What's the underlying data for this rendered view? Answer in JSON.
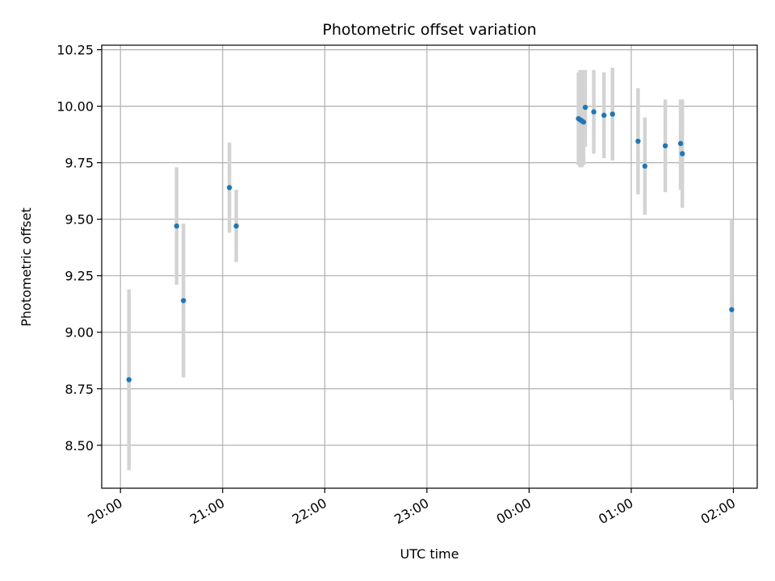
{
  "chart_data": {
    "type": "scatter",
    "title": "Photometric offset variation",
    "xlabel": "UTC time",
    "ylabel": "Photometric offset",
    "x_axis": {
      "type": "time",
      "range": [
        "19:49",
        "02:14"
      ],
      "ticks": [
        {
          "t": "20:00",
          "label": "20:00"
        },
        {
          "t": "21:00",
          "label": "21:00"
        },
        {
          "t": "22:00",
          "label": "22:00"
        },
        {
          "t": "23:00",
          "label": "23:00"
        },
        {
          "t": "00:00",
          "label": "00:00"
        },
        {
          "t": "01:00",
          "label": "01:00"
        },
        {
          "t": "02:00",
          "label": "02:00"
        }
      ]
    },
    "y_axis": {
      "range": [
        8.31,
        10.27
      ],
      "ticks": [
        {
          "v": 8.5,
          "label": "8.50"
        },
        {
          "v": 8.75,
          "label": "8.75"
        },
        {
          "v": 9.0,
          "label": "9.00"
        },
        {
          "v": 9.25,
          "label": "9.25"
        },
        {
          "v": 9.5,
          "label": "9.50"
        },
        {
          "v": 9.75,
          "label": "9.75"
        },
        {
          "v": 10.0,
          "label": "10.00"
        },
        {
          "v": 10.25,
          "label": "10.25"
        }
      ]
    },
    "grid": true,
    "legend": "none",
    "point_color": "#1f77b4",
    "errorbar_color": "#d3d3d3",
    "points": [
      {
        "t": "20:05",
        "y": 8.79,
        "lo": 8.39,
        "hi": 9.19
      },
      {
        "t": "20:33",
        "y": 9.47,
        "lo": 9.21,
        "hi": 9.73
      },
      {
        "t": "20:37",
        "y": 9.14,
        "lo": 8.8,
        "hi": 9.48
      },
      {
        "t": "21:04",
        "y": 9.64,
        "lo": 9.44,
        "hi": 9.84
      },
      {
        "t": "21:08",
        "y": 9.47,
        "lo": 9.31,
        "hi": 9.63
      },
      {
        "t": "00:29",
        "y": 9.945,
        "lo": 9.74,
        "hi": 10.15
      },
      {
        "t": "00:30",
        "y": 9.94,
        "lo": 9.73,
        "hi": 10.16
      },
      {
        "t": "00:31",
        "y": 9.935,
        "lo": 9.73,
        "hi": 10.16
      },
      {
        "t": "00:32",
        "y": 9.93,
        "lo": 9.74,
        "hi": 10.15
      },
      {
        "t": "00:33",
        "y": 9.995,
        "lo": 9.82,
        "hi": 10.16
      },
      {
        "t": "00:38",
        "y": 9.975,
        "lo": 9.79,
        "hi": 10.16
      },
      {
        "t": "00:44",
        "y": 9.96,
        "lo": 9.77,
        "hi": 10.15
      },
      {
        "t": "00:49",
        "y": 9.965,
        "lo": 9.76,
        "hi": 10.17
      },
      {
        "t": "01:04",
        "y": 9.845,
        "lo": 9.61,
        "hi": 10.08
      },
      {
        "t": "01:08",
        "y": 9.735,
        "lo": 9.52,
        "hi": 9.95
      },
      {
        "t": "01:20",
        "y": 9.825,
        "lo": 9.62,
        "hi": 10.03
      },
      {
        "t": "01:29",
        "y": 9.835,
        "lo": 9.63,
        "hi": 10.03
      },
      {
        "t": "01:30",
        "y": 9.79,
        "lo": 9.55,
        "hi": 10.03
      },
      {
        "t": "01:59",
        "y": 9.1,
        "lo": 8.7,
        "hi": 9.5
      }
    ]
  }
}
